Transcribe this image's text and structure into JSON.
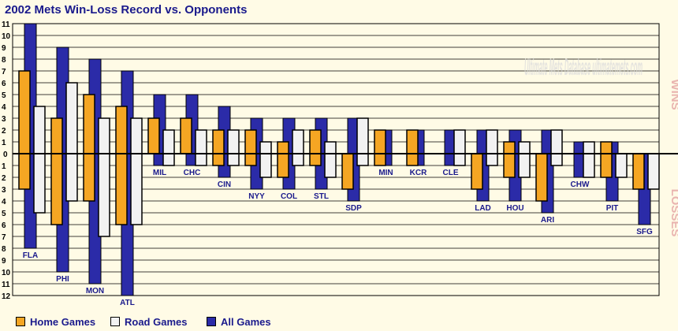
{
  "chart_data": {
    "type": "bar",
    "title": "2002 Mets Win-Loss Record vs. Opponents",
    "right_label_wins": "WINS",
    "right_label_losses": "LOSSES",
    "watermark": "Ultimate Mets Database ultimatemets.com",
    "ylim": [
      -12,
      11
    ],
    "y_ticks_wins": [
      1,
      2,
      3,
      4,
      5,
      6,
      7,
      8,
      9,
      10,
      11
    ],
    "y_ticks_losses": [
      1,
      2,
      3,
      4,
      5,
      6,
      7,
      8,
      9,
      10,
      11,
      12
    ],
    "series_labels": {
      "home": "Home Games",
      "road": "Road Games",
      "all": "All Games"
    },
    "colors": {
      "home": "#f5a623",
      "road": "#f2f2f2",
      "all": "#2b2ba8",
      "label": "#1a1a8c",
      "side": "#e9b4b0"
    },
    "opponents": [
      {
        "team": "FLA",
        "home_w": 7,
        "home_l": 3,
        "road_w": 4,
        "road_l": 5,
        "all_w": 11,
        "all_l": 8
      },
      {
        "team": "PHI",
        "home_w": 3,
        "home_l": 6,
        "road_w": 6,
        "road_l": 4,
        "all_w": 9,
        "all_l": 10
      },
      {
        "team": "MON",
        "home_w": 5,
        "home_l": 4,
        "road_w": 3,
        "road_l": 7,
        "all_w": 8,
        "all_l": 11
      },
      {
        "team": "ATL",
        "home_w": 4,
        "home_l": 6,
        "road_w": 3,
        "road_l": 6,
        "all_w": 7,
        "all_l": 12
      },
      {
        "team": "MIL",
        "home_w": 3,
        "home_l": 0,
        "road_w": 2,
        "road_l": 1,
        "all_w": 5,
        "all_l": 1
      },
      {
        "team": "CHC",
        "home_w": 3,
        "home_l": 0,
        "road_w": 2,
        "road_l": 1,
        "all_w": 5,
        "all_l": 1
      },
      {
        "team": "CIN",
        "home_w": 2,
        "home_l": 1,
        "road_w": 2,
        "road_l": 1,
        "all_w": 4,
        "all_l": 2
      },
      {
        "team": "NYY",
        "home_w": 2,
        "home_l": 1,
        "road_w": 1,
        "road_l": 2,
        "all_w": 3,
        "all_l": 3
      },
      {
        "team": "COL",
        "home_w": 1,
        "home_l": 2,
        "road_w": 2,
        "road_l": 1,
        "all_w": 3,
        "all_l": 3
      },
      {
        "team": "STL",
        "home_w": 2,
        "home_l": 1,
        "road_w": 1,
        "road_l": 2,
        "all_w": 3,
        "all_l": 3
      },
      {
        "team": "SDP",
        "home_w": 0,
        "home_l": 3,
        "road_w": 3,
        "road_l": 1,
        "all_w": 3,
        "all_l": 4
      },
      {
        "team": "MIN",
        "home_w": 2,
        "home_l": 1,
        "road_w": 0,
        "road_l": 0,
        "all_w": 2,
        "all_l": 1
      },
      {
        "team": "KCR",
        "home_w": 2,
        "home_l": 1,
        "road_w": 0,
        "road_l": 0,
        "all_w": 2,
        "all_l": 1
      },
      {
        "team": "CLE",
        "home_w": 0,
        "home_l": 0,
        "road_w": 2,
        "road_l": 1,
        "all_w": 2,
        "all_l": 1
      },
      {
        "team": "LAD",
        "home_w": 0,
        "home_l": 3,
        "road_w": 2,
        "road_l": 1,
        "all_w": 2,
        "all_l": 4
      },
      {
        "team": "HOU",
        "home_w": 1,
        "home_l": 2,
        "road_w": 1,
        "road_l": 2,
        "all_w": 2,
        "all_l": 4
      },
      {
        "team": "ARI",
        "home_w": 0,
        "home_l": 4,
        "road_w": 2,
        "road_l": 1,
        "all_w": 2,
        "all_l": 5
      },
      {
        "team": "CHW",
        "home_w": 0,
        "home_l": 0,
        "road_w": 1,
        "road_l": 2,
        "all_w": 1,
        "all_l": 2
      },
      {
        "team": "PIT",
        "home_w": 1,
        "home_l": 2,
        "road_w": 0,
        "road_l": 2,
        "all_w": 1,
        "all_l": 4
      },
      {
        "team": "SFG",
        "home_w": 0,
        "home_l": 3,
        "road_w": 0,
        "road_l": 3,
        "all_w": 0,
        "all_l": 6
      }
    ]
  }
}
